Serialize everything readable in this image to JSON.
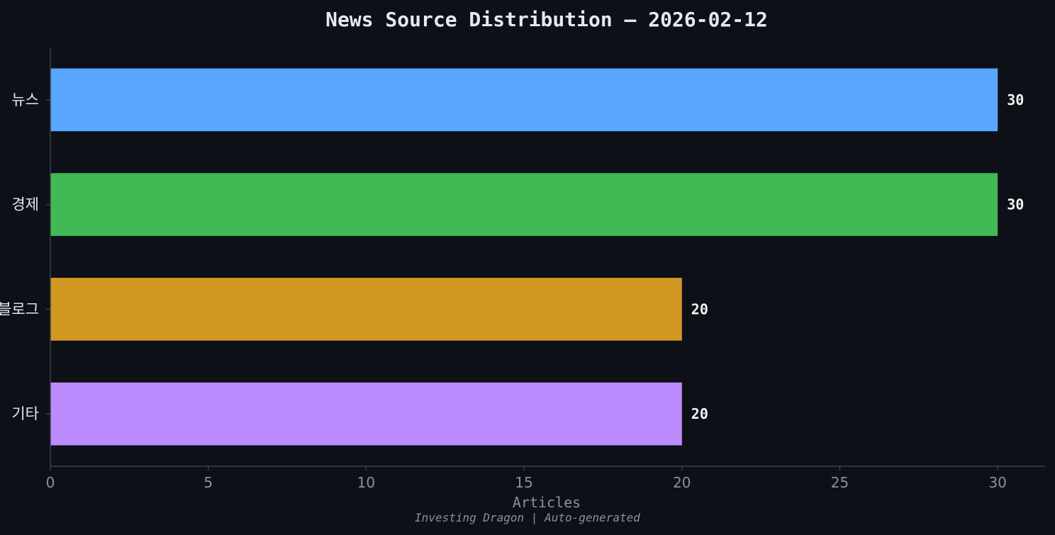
{
  "chart_data": {
    "type": "bar",
    "orientation": "horizontal",
    "title": "News Source Distribution — 2026-02-12",
    "xlabel": "Articles",
    "ylabel": "",
    "footer": "Investing Dragon | Auto-generated",
    "categories": [
      "뉴스",
      "경제",
      "블로그",
      "기타"
    ],
    "values": [
      30,
      30,
      20,
      20
    ],
    "colors": [
      "#58a6ff",
      "#41b954",
      "#d29922",
      "#bc8cff"
    ],
    "xlim": [
      0,
      31.5
    ],
    "xticks": [
      0,
      5,
      10,
      15,
      20,
      25,
      30
    ],
    "grid": false,
    "legend": "none"
  },
  "theme": {
    "background": "#0d1017",
    "axis": "#3a3f48",
    "text": "#e6e9ef",
    "muted": "#8b919b"
  }
}
